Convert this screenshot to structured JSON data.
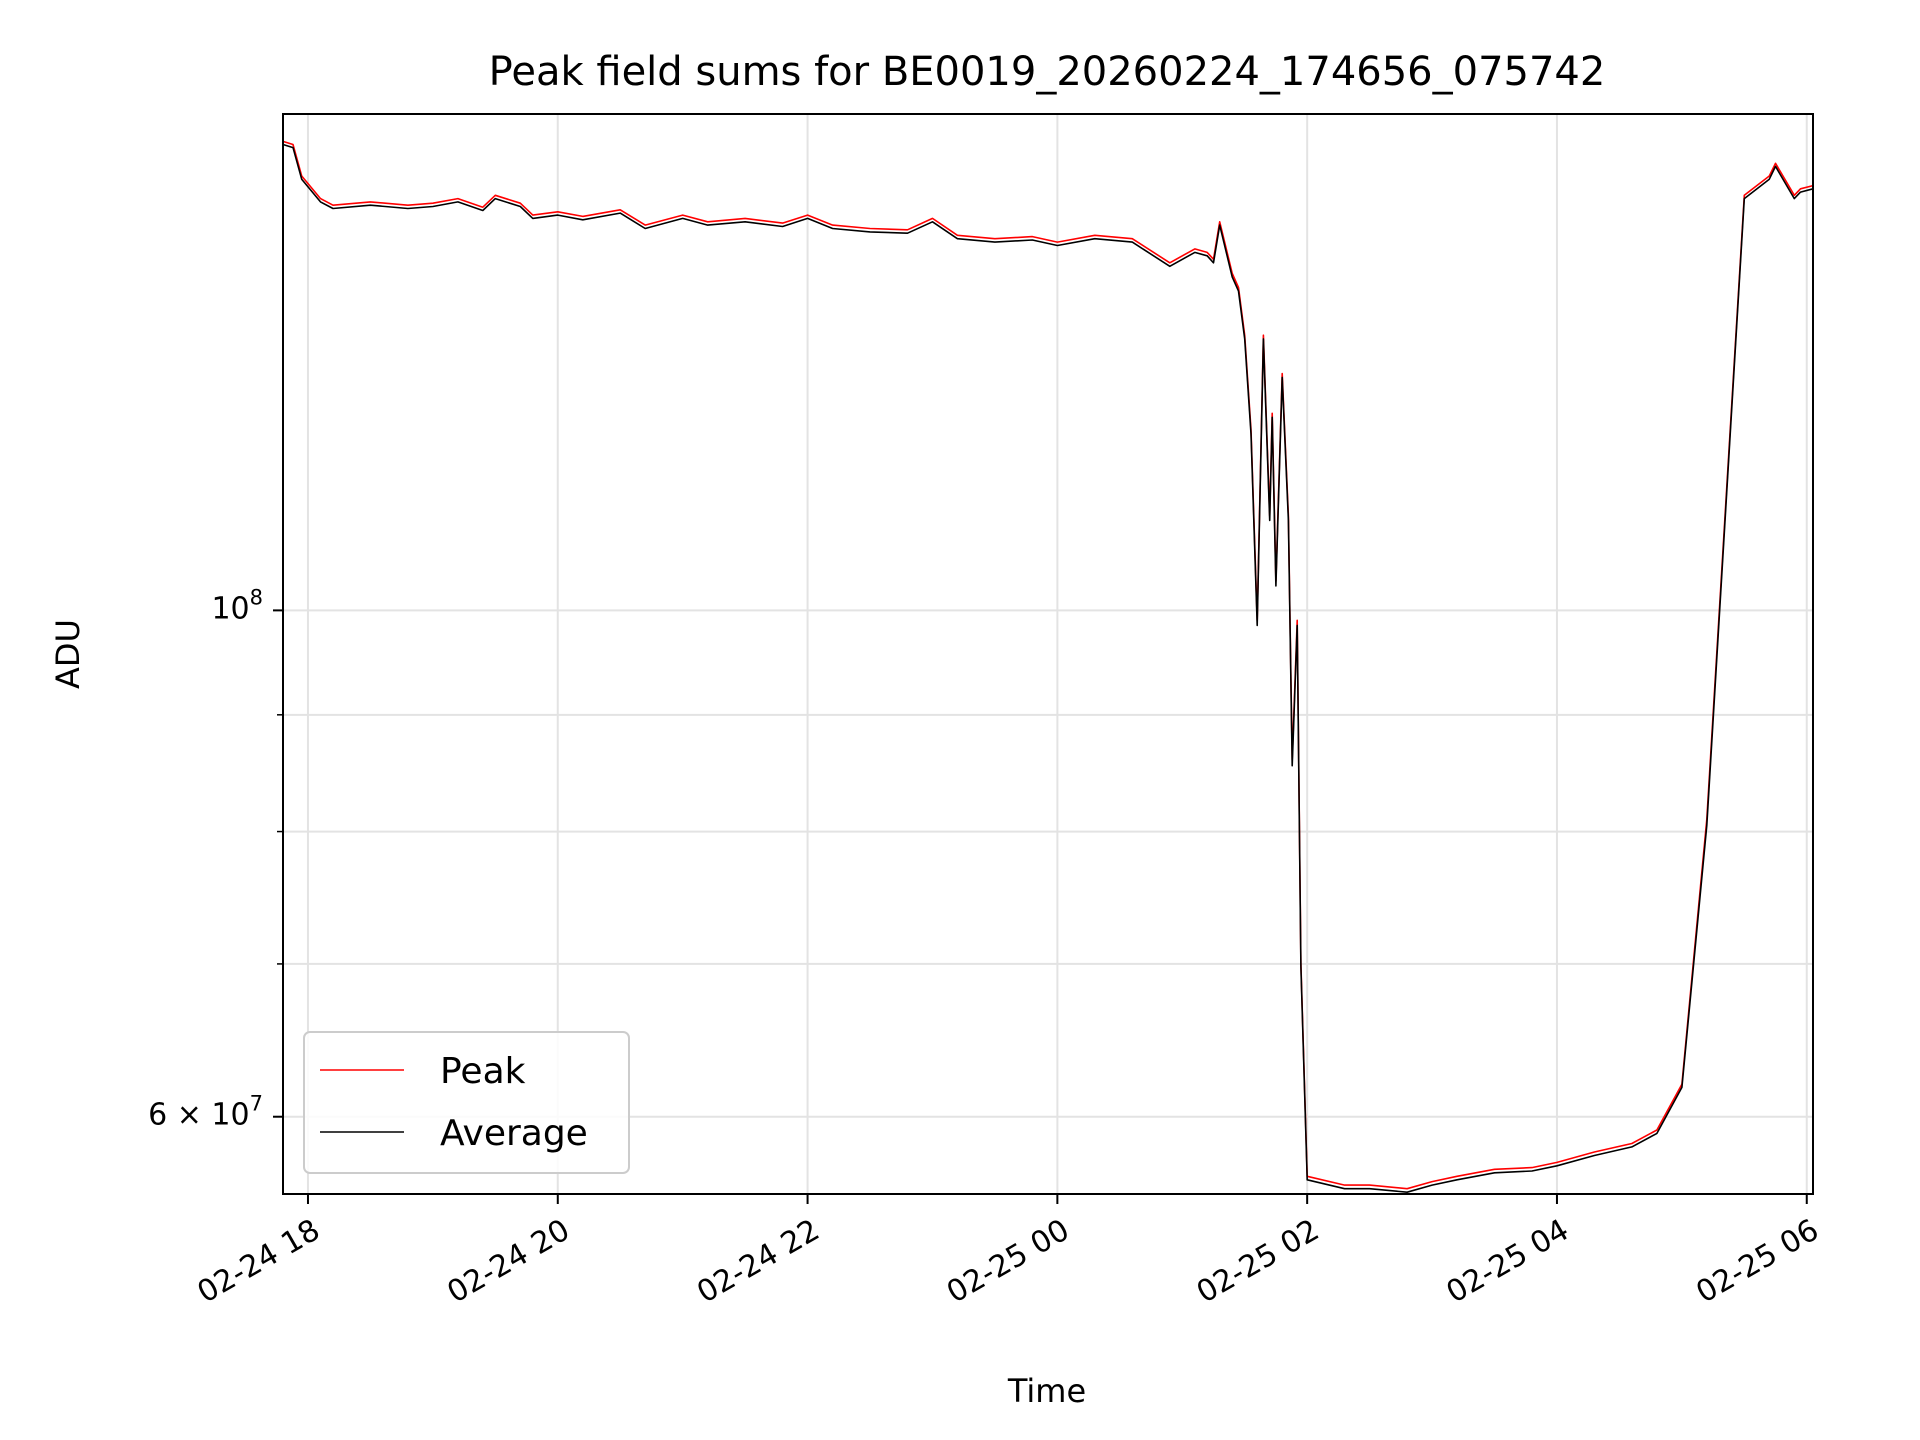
{
  "chart_data": {
    "type": "line",
    "title": "Peak field sums for BE0019_20260224_174656_075742",
    "xlabel": "Time",
    "ylabel": "ADU",
    "yscale": "log",
    "xlim_hours": [
      -0.2,
      12.05
    ],
    "ylim": [
      55500000,
      165000000
    ],
    "grid": true,
    "legend_position": "lower-left",
    "xticks": [
      {
        "hours": 0,
        "label": "02-24 18"
      },
      {
        "hours": 2,
        "label": "02-24 20"
      },
      {
        "hours": 4,
        "label": "02-24 22"
      },
      {
        "hours": 6,
        "label": "02-25 00"
      },
      {
        "hours": 8,
        "label": "02-25 02"
      },
      {
        "hours": 10,
        "label": "02-25 04"
      },
      {
        "hours": 12,
        "label": "02-25 06"
      }
    ],
    "yticks_major": [
      {
        "value": 100000000,
        "base": "10",
        "exp": "8",
        "prefix": ""
      },
      {
        "value": 60000000,
        "base": "10",
        "exp": "7",
        "prefix": "6 × "
      }
    ],
    "yticks_minor": [
      70000000,
      80000000,
      90000000
    ],
    "series": [
      {
        "name": "Peak",
        "color": "#ff0000",
        "hours": [
          -0.2,
          -0.12,
          -0.05,
          0.1,
          0.2,
          0.5,
          0.8,
          1.0,
          1.2,
          1.4,
          1.5,
          1.7,
          1.8,
          2.0,
          2.2,
          2.5,
          2.7,
          3.0,
          3.2,
          3.5,
          3.8,
          4.0,
          4.2,
          4.5,
          4.8,
          5.0,
          5.2,
          5.5,
          5.8,
          6.0,
          6.3,
          6.6,
          6.9,
          7.1,
          7.2,
          7.25,
          7.3,
          7.4,
          7.45,
          7.5,
          7.55,
          7.6,
          7.65,
          7.7,
          7.72,
          7.75,
          7.8,
          7.85,
          7.88,
          7.92,
          7.95,
          8.0,
          8.3,
          8.5,
          8.8,
          9.0,
          9.2,
          9.5,
          9.8,
          10.0,
          10.3,
          10.6,
          10.8,
          11.0,
          11.2,
          11.5,
          11.7,
          11.75,
          11.9,
          11.95,
          12.05
        ],
        "values": [
          160500000,
          160000000,
          155000000,
          151500000,
          150500000,
          151000000,
          150500000,
          150800000,
          151500000,
          150200000,
          152000000,
          150800000,
          149000000,
          149500000,
          148800000,
          149800000,
          147500000,
          149000000,
          148000000,
          148500000,
          147800000,
          149000000,
          147500000,
          147000000,
          146800000,
          148500000,
          146000000,
          145500000,
          145800000,
          145000000,
          146000000,
          145500000,
          142000000,
          144000000,
          143500000,
          142500000,
          148000000,
          140500000,
          138500000,
          132000000,
          120000000,
          99000000,
          132000000,
          110000000,
          122000000,
          103000000,
          127000000,
          110000000,
          86000000,
          99000000,
          70000000,
          56500000,
          56000000,
          56000000,
          55800000,
          56200000,
          56500000,
          56900000,
          57000000,
          57300000,
          57900000,
          58400000,
          59200000,
          62000000,
          81000000,
          152000000,
          155000000,
          157000000,
          152000000,
          153000000,
          153500000
        ]
      },
      {
        "name": "Average",
        "color": "#000000",
        "hours": [
          -0.2,
          -0.12,
          -0.05,
          0.1,
          0.2,
          0.5,
          0.8,
          1.0,
          1.2,
          1.4,
          1.5,
          1.7,
          1.8,
          2.0,
          2.2,
          2.5,
          2.7,
          3.0,
          3.2,
          3.5,
          3.8,
          4.0,
          4.2,
          4.5,
          4.8,
          5.0,
          5.2,
          5.5,
          5.8,
          6.0,
          6.3,
          6.6,
          6.9,
          7.1,
          7.2,
          7.25,
          7.3,
          7.4,
          7.45,
          7.5,
          7.55,
          7.6,
          7.65,
          7.7,
          7.72,
          7.75,
          7.8,
          7.85,
          7.88,
          7.92,
          7.95,
          8.0,
          8.3,
          8.5,
          8.8,
          9.0,
          9.2,
          9.5,
          9.8,
          10.0,
          10.3,
          10.6,
          10.8,
          11.0,
          11.2,
          11.5,
          11.7,
          11.75,
          11.9,
          11.95,
          12.05
        ],
        "values": [
          160000000,
          159500000,
          154500000,
          151000000,
          150000000,
          150500000,
          150000000,
          150300000,
          151000000,
          149700000,
          151500000,
          150300000,
          148500000,
          149000000,
          148300000,
          149300000,
          147000000,
          148500000,
          147500000,
          148000000,
          147300000,
          148500000,
          147000000,
          146500000,
          146300000,
          148000000,
          145500000,
          145000000,
          145300000,
          144500000,
          145500000,
          145000000,
          141500000,
          143500000,
          143000000,
          142000000,
          147500000,
          140000000,
          138000000,
          131500000,
          119500000,
          98500000,
          131500000,
          109500000,
          121500000,
          102500000,
          126500000,
          109500000,
          85500000,
          98500000,
          69800000,
          56300000,
          55800000,
          55800000,
          55600000,
          56000000,
          56300000,
          56700000,
          56800000,
          57100000,
          57700000,
          58200000,
          59000000,
          61800000,
          80500000,
          151500000,
          154500000,
          156500000,
          151500000,
          152500000,
          153000000
        ]
      }
    ]
  }
}
